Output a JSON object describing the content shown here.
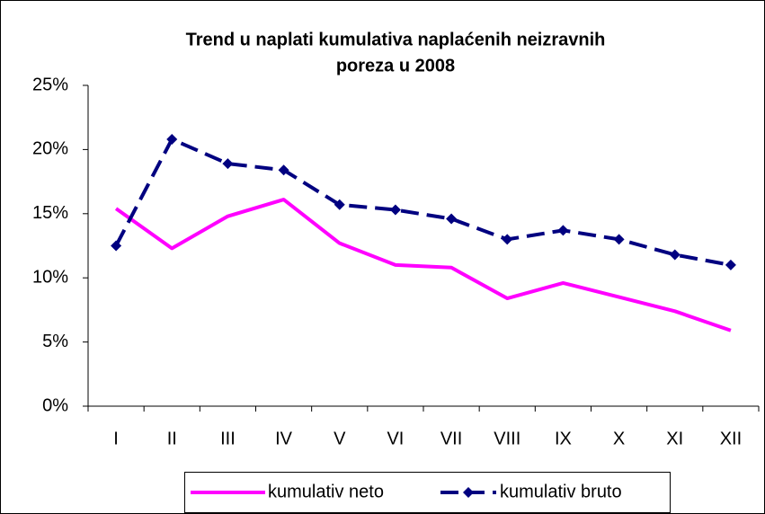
{
  "chart_data": {
    "type": "line",
    "title": [
      "Trend u naplati kumulativa naplaćenih neizravnih",
      "poreza u 2008"
    ],
    "categories": [
      "I",
      "II",
      "III",
      "IV",
      "V",
      "VI",
      "VII",
      "VIII",
      "IX",
      "X",
      "XI",
      "XII"
    ],
    "series": [
      {
        "name": "kumulativ neto",
        "color": "#ff00ff",
        "dashed": false,
        "markers": false,
        "values": [
          15.4,
          12.3,
          14.8,
          16.1,
          12.7,
          11.0,
          10.8,
          8.4,
          9.6,
          8.5,
          7.4,
          5.9
        ]
      },
      {
        "name": "kumulativ bruto",
        "color": "#000080",
        "dashed": true,
        "markers": true,
        "values": [
          12.5,
          20.8,
          18.9,
          18.4,
          15.7,
          15.3,
          14.6,
          13.0,
          13.7,
          13.0,
          11.8,
          11.0
        ]
      }
    ],
    "ylim": [
      0,
      25
    ],
    "yticks": [
      {
        "value": 0,
        "label": "0%"
      },
      {
        "value": 5,
        "label": "5%"
      },
      {
        "value": 10,
        "label": "10%"
      },
      {
        "value": 15,
        "label": "15%"
      },
      {
        "value": 20,
        "label": "20%"
      },
      {
        "value": 25,
        "label": "25%"
      }
    ],
    "grid": false,
    "legend": "bottom"
  }
}
